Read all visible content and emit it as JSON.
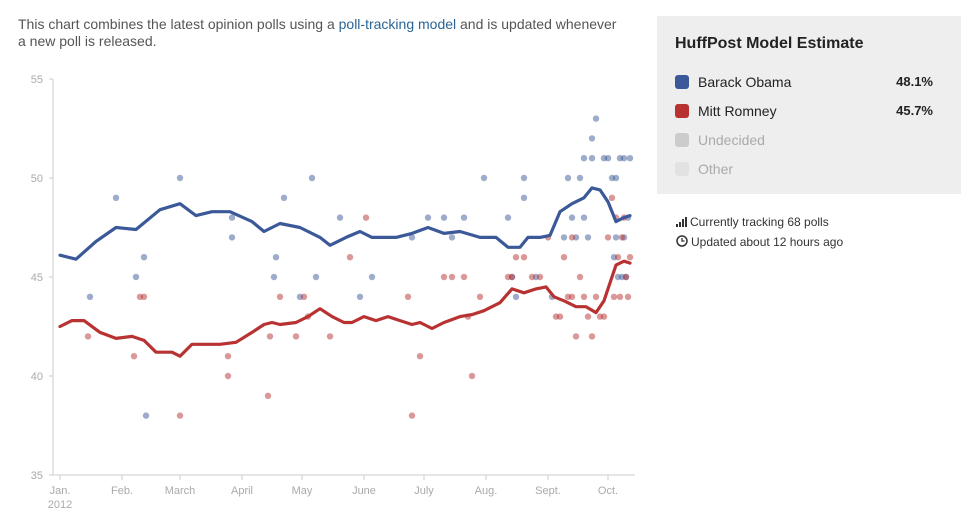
{
  "intro": {
    "before": "This chart combines the latest opinion polls using a ",
    "link": "poll-tracking model",
    "after": " and is updated whenever a new poll is released."
  },
  "panel": {
    "title": "HuffPost Model Estimate",
    "legend": [
      {
        "name": "Barack Obama",
        "value": "48.1%",
        "color": "#3b5998"
      },
      {
        "name": "Mitt Romney",
        "value": "45.7%",
        "color": "#b83232"
      },
      {
        "name": "Undecided",
        "value": "",
        "color": "#cccccc"
      },
      {
        "name": "Other",
        "value": "",
        "color": "#e2e2e2"
      }
    ]
  },
  "info": {
    "tracking": "Currently tracking 68 polls",
    "updated": "Updated about 12 hours ago",
    "tracking_icon": "bar-chart-icon",
    "updated_icon": "clock-icon"
  },
  "chart_data": {
    "type": "line",
    "title": "",
    "xlabel": "",
    "ylabel": "",
    "ylim": [
      35,
      55
    ],
    "yticks": [
      35,
      40,
      45,
      50,
      55
    ],
    "xlim": [
      0,
      285
    ],
    "xticks": [
      {
        "t": 0,
        "label": "Jan.",
        "sub": "2012"
      },
      {
        "t": 31,
        "label": "Feb."
      },
      {
        "t": 60,
        "label": "March"
      },
      {
        "t": 91,
        "label": "April"
      },
      {
        "t": 121,
        "label": "May"
      },
      {
        "t": 152,
        "label": "June"
      },
      {
        "t": 182,
        "label": "July"
      },
      {
        "t": 213,
        "label": "Aug."
      },
      {
        "t": 244,
        "label": "Sept."
      },
      {
        "t": 274,
        "label": "Oct."
      }
    ],
    "series": [
      {
        "name": "Barack Obama",
        "color": "#3b5998",
        "line": [
          [
            0,
            46.1
          ],
          [
            8,
            45.9
          ],
          [
            18,
            46.8
          ],
          [
            28,
            47.5
          ],
          [
            38,
            47.4
          ],
          [
            50,
            48.4
          ],
          [
            60,
            48.7
          ],
          [
            68,
            48.1
          ],
          [
            76,
            48.3
          ],
          [
            85,
            48.3
          ],
          [
            96,
            47.8
          ],
          [
            102,
            47.3
          ],
          [
            110,
            47.7
          ],
          [
            120,
            47.5
          ],
          [
            130,
            47.0
          ],
          [
            135,
            46.6
          ],
          [
            143,
            47.0
          ],
          [
            150,
            47.3
          ],
          [
            156,
            47.0
          ],
          [
            168,
            47.0
          ],
          [
            176,
            47.2
          ],
          [
            184,
            47.5
          ],
          [
            192,
            47.2
          ],
          [
            200,
            47.3
          ],
          [
            210,
            47.0
          ],
          [
            218,
            47.0
          ],
          [
            224,
            46.5
          ],
          [
            230,
            46.5
          ],
          [
            234,
            47.0
          ],
          [
            240,
            47.0
          ],
          [
            245,
            47.1
          ],
          [
            250,
            48.3
          ],
          [
            256,
            48.7
          ],
          [
            262,
            49.0
          ],
          [
            266,
            49.5
          ],
          [
            270,
            49.4
          ],
          [
            274,
            48.8
          ],
          [
            278,
            47.8
          ],
          [
            282,
            48.0
          ],
          [
            285,
            48.1
          ]
        ],
        "polls": [
          [
            15,
            44
          ],
          [
            28,
            49
          ],
          [
            38,
            45
          ],
          [
            42,
            46
          ],
          [
            43,
            38
          ],
          [
            60,
            50
          ],
          [
            86,
            48
          ],
          [
            86,
            47
          ],
          [
            107,
            45
          ],
          [
            108,
            46
          ],
          [
            112,
            49
          ],
          [
            120,
            44
          ],
          [
            126,
            50
          ],
          [
            128,
            45
          ],
          [
            140,
            48
          ],
          [
            150,
            44
          ],
          [
            156,
            45
          ],
          [
            176,
            47
          ],
          [
            184,
            48
          ],
          [
            192,
            48
          ],
          [
            196,
            47
          ],
          [
            202,
            48
          ],
          [
            212,
            50
          ],
          [
            224,
            48
          ],
          [
            226,
            45
          ],
          [
            228,
            44
          ],
          [
            232,
            49
          ],
          [
            232,
            50
          ],
          [
            238,
            45
          ],
          [
            246,
            44
          ],
          [
            252,
            47
          ],
          [
            254,
            50
          ],
          [
            256,
            48
          ],
          [
            258,
            47
          ],
          [
            260,
            50
          ],
          [
            262,
            48
          ],
          [
            262,
            51
          ],
          [
            264,
            47
          ],
          [
            266,
            51
          ],
          [
            266,
            52
          ],
          [
            268,
            53
          ],
          [
            272,
            51
          ],
          [
            274,
            51
          ],
          [
            276,
            50
          ],
          [
            277,
            46
          ],
          [
            278,
            50
          ],
          [
            278,
            47
          ],
          [
            279,
            45
          ],
          [
            280,
            51
          ],
          [
            281,
            45
          ],
          [
            282,
            47
          ],
          [
            282,
            51
          ],
          [
            283,
            45
          ],
          [
            284,
            48
          ],
          [
            285,
            51
          ]
        ]
      },
      {
        "name": "Mitt Romney",
        "color": "#b83232",
        "line": [
          [
            0,
            42.5
          ],
          [
            6,
            42.8
          ],
          [
            12,
            42.8
          ],
          [
            20,
            42.2
          ],
          [
            28,
            41.9
          ],
          [
            36,
            42.0
          ],
          [
            42,
            41.8
          ],
          [
            48,
            41.2
          ],
          [
            56,
            41.2
          ],
          [
            60,
            41.0
          ],
          [
            66,
            41.6
          ],
          [
            74,
            41.6
          ],
          [
            80,
            41.6
          ],
          [
            88,
            41.7
          ],
          [
            96,
            42.2
          ],
          [
            102,
            42.6
          ],
          [
            106,
            42.7
          ],
          [
            110,
            42.6
          ],
          [
            118,
            42.7
          ],
          [
            124,
            43.0
          ],
          [
            130,
            43.4
          ],
          [
            136,
            43.0
          ],
          [
            142,
            42.7
          ],
          [
            146,
            42.7
          ],
          [
            152,
            43.0
          ],
          [
            158,
            42.8
          ],
          [
            164,
            43.0
          ],
          [
            170,
            42.8
          ],
          [
            176,
            42.6
          ],
          [
            180,
            42.7
          ],
          [
            186,
            42.4
          ],
          [
            192,
            42.7
          ],
          [
            200,
            43.0
          ],
          [
            206,
            43.1
          ],
          [
            212,
            43.3
          ],
          [
            220,
            43.7
          ],
          [
            226,
            44.4
          ],
          [
            232,
            44.2
          ],
          [
            238,
            44.4
          ],
          [
            243,
            44.5
          ],
          [
            247,
            44.0
          ],
          [
            252,
            43.8
          ],
          [
            258,
            43.5
          ],
          [
            263,
            43.5
          ],
          [
            268,
            43.2
          ],
          [
            272,
            43.8
          ],
          [
            275,
            44.7
          ],
          [
            278,
            45.6
          ],
          [
            282,
            45.8
          ],
          [
            285,
            45.7
          ]
        ],
        "polls": [
          [
            14,
            42
          ],
          [
            37,
            41
          ],
          [
            40,
            44
          ],
          [
            42,
            44
          ],
          [
            60,
            38
          ],
          [
            84,
            41
          ],
          [
            84,
            40
          ],
          [
            104,
            39
          ],
          [
            105,
            42
          ],
          [
            110,
            44
          ],
          [
            118,
            42
          ],
          [
            122,
            44
          ],
          [
            124,
            43
          ],
          [
            135,
            42
          ],
          [
            145,
            46
          ],
          [
            153,
            48
          ],
          [
            174,
            44
          ],
          [
            176,
            38
          ],
          [
            180,
            41
          ],
          [
            192,
            45
          ],
          [
            196,
            45
          ],
          [
            202,
            45
          ],
          [
            204,
            43
          ],
          [
            206,
            40
          ],
          [
            210,
            44
          ],
          [
            224,
            45
          ],
          [
            226,
            45
          ],
          [
            228,
            46
          ],
          [
            232,
            46
          ],
          [
            236,
            45
          ],
          [
            240,
            45
          ],
          [
            244,
            47
          ],
          [
            248,
            43
          ],
          [
            250,
            43
          ],
          [
            252,
            46
          ],
          [
            254,
            44
          ],
          [
            256,
            47
          ],
          [
            256,
            44
          ],
          [
            258,
            42
          ],
          [
            260,
            45
          ],
          [
            262,
            44
          ],
          [
            264,
            43
          ],
          [
            266,
            42
          ],
          [
            268,
            44
          ],
          [
            270,
            43
          ],
          [
            272,
            43
          ],
          [
            274,
            47
          ],
          [
            276,
            49
          ],
          [
            277,
            44
          ],
          [
            278,
            48
          ],
          [
            279,
            46
          ],
          [
            280,
            44
          ],
          [
            281,
            47
          ],
          [
            282,
            48
          ],
          [
            283,
            45
          ],
          [
            284,
            44
          ],
          [
            285,
            46
          ]
        ]
      }
    ]
  }
}
